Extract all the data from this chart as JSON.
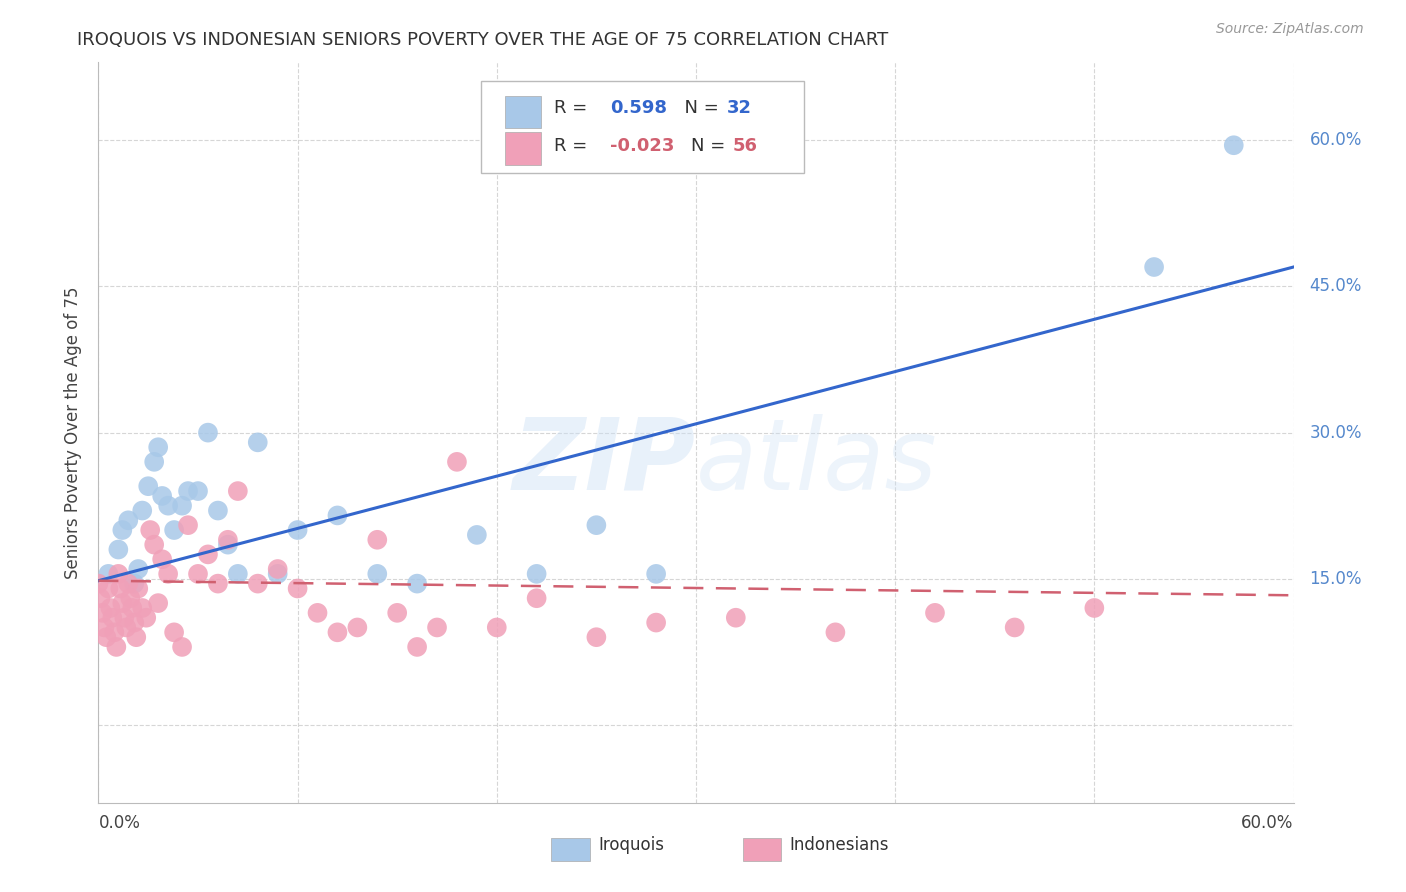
{
  "title": "IROQUOIS VS INDONESIAN SENIORS POVERTY OVER THE AGE OF 75 CORRELATION CHART",
  "source": "Source: ZipAtlas.com",
  "ylabel": "Seniors Poverty Over the Age of 75",
  "xmin": 0.0,
  "xmax": 0.6,
  "ymin": -0.08,
  "ymax": 0.68,
  "ytick_vals": [
    0.0,
    0.15,
    0.3,
    0.45,
    0.6
  ],
  "ytick_labels_right": [
    "",
    "15.0%",
    "30.0%",
    "45.0%",
    "60.0%"
  ],
  "xtick_vals": [
    0.0,
    0.1,
    0.2,
    0.3,
    0.4,
    0.5,
    0.6
  ],
  "iroquois_color": "#a8c8e8",
  "indonesian_color": "#f0a0b8",
  "line_iroquois_color": "#3366cc",
  "line_indonesian_color": "#d06070",
  "watermark_color": "#ddeeff",
  "iroquois_line_start_y": 0.148,
  "iroquois_line_end_y": 0.47,
  "indonesian_line_start_y": 0.148,
  "indonesian_line_end_y": 0.133,
  "iroquois_x": [
    0.005,
    0.01,
    0.012,
    0.015,
    0.018,
    0.02,
    0.022,
    0.025,
    0.028,
    0.03,
    0.032,
    0.035,
    0.038,
    0.042,
    0.045,
    0.05,
    0.055,
    0.06,
    0.065,
    0.07,
    0.08,
    0.09,
    0.1,
    0.12,
    0.14,
    0.16,
    0.19,
    0.22,
    0.25,
    0.28,
    0.53,
    0.57
  ],
  "iroquois_y": [
    0.155,
    0.18,
    0.2,
    0.21,
    0.145,
    0.16,
    0.22,
    0.245,
    0.27,
    0.285,
    0.235,
    0.225,
    0.2,
    0.225,
    0.24,
    0.24,
    0.3,
    0.22,
    0.185,
    0.155,
    0.29,
    0.155,
    0.2,
    0.215,
    0.155,
    0.145,
    0.195,
    0.155,
    0.205,
    0.155,
    0.47,
    0.595
  ],
  "indonesian_x": [
    0.0,
    0.001,
    0.002,
    0.003,
    0.004,
    0.005,
    0.006,
    0.007,
    0.008,
    0.009,
    0.01,
    0.011,
    0.012,
    0.013,
    0.014,
    0.015,
    0.016,
    0.017,
    0.018,
    0.019,
    0.02,
    0.022,
    0.024,
    0.026,
    0.028,
    0.03,
    0.032,
    0.035,
    0.038,
    0.042,
    0.045,
    0.05,
    0.055,
    0.06,
    0.065,
    0.07,
    0.08,
    0.09,
    0.1,
    0.11,
    0.12,
    0.13,
    0.14,
    0.15,
    0.16,
    0.17,
    0.18,
    0.2,
    0.22,
    0.25,
    0.28,
    0.32,
    0.37,
    0.42,
    0.46,
    0.5
  ],
  "indonesian_y": [
    0.145,
    0.13,
    0.115,
    0.1,
    0.09,
    0.14,
    0.12,
    0.11,
    0.095,
    0.08,
    0.155,
    0.14,
    0.125,
    0.11,
    0.1,
    0.145,
    0.13,
    0.12,
    0.105,
    0.09,
    0.14,
    0.12,
    0.11,
    0.2,
    0.185,
    0.125,
    0.17,
    0.155,
    0.095,
    0.08,
    0.205,
    0.155,
    0.175,
    0.145,
    0.19,
    0.24,
    0.145,
    0.16,
    0.14,
    0.115,
    0.095,
    0.1,
    0.19,
    0.115,
    0.08,
    0.1,
    0.27,
    0.1,
    0.13,
    0.09,
    0.105,
    0.11,
    0.095,
    0.115,
    0.1,
    0.12
  ]
}
